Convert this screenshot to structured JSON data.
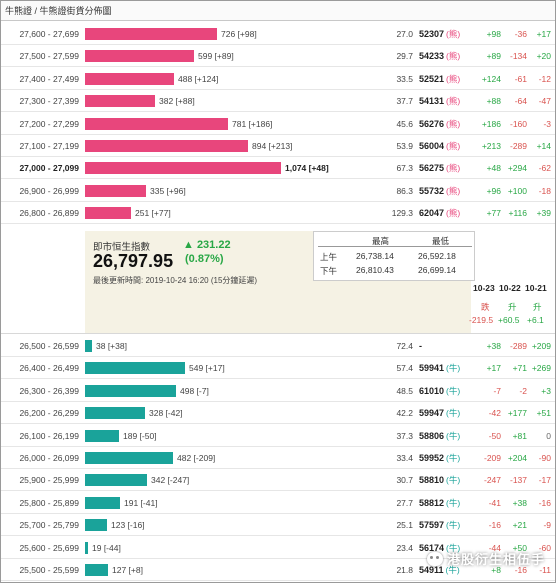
{
  "breadcrumb": "牛熊證 / 牛熊證街貨分佈圖",
  "colors": {
    "bull": "#e8467c",
    "bear": "#1aa39a",
    "up": "#28a745",
    "down": "#d9534f"
  },
  "upper_rows": [
    {
      "range": "27,600 - 27,699",
      "qty": "726 [+98]",
      "value": 726,
      "ratio": "27.0",
      "level": "52307",
      "tag": "(熊)",
      "c1": "+98",
      "c2": "-36",
      "c3": "+17"
    },
    {
      "range": "27,500 - 27,599",
      "qty": "599 [+89]",
      "value": 599,
      "ratio": "29.7",
      "level": "54233",
      "tag": "(熊)",
      "c1": "+89",
      "c2": "-134",
      "c3": "+20"
    },
    {
      "range": "27,400 - 27,499",
      "qty": "488 [+124]",
      "value": 488,
      "ratio": "33.5",
      "level": "52521",
      "tag": "(熊)",
      "c1": "+124",
      "c2": "-61",
      "c3": "-12"
    },
    {
      "range": "27,300 - 27,399",
      "qty": "382 [+88]",
      "value": 382,
      "ratio": "37.7",
      "level": "54131",
      "tag": "(熊)",
      "c1": "+88",
      "c2": "-64",
      "c3": "-47"
    },
    {
      "range": "27,200 - 27,299",
      "qty": "781 [+186]",
      "value": 781,
      "ratio": "45.6",
      "level": "56276",
      "tag": "(熊)",
      "c1": "+186",
      "c2": "-160",
      "c3": "-3"
    },
    {
      "range": "27,100 - 27,199",
      "qty": "894 [+213]",
      "value": 894,
      "ratio": "53.9",
      "level": "56004",
      "tag": "(熊)",
      "c1": "+213",
      "c2": "-289",
      "c3": "+14"
    },
    {
      "range": "27,000 - 27,099",
      "qty": "1,074 [+48]",
      "value": 1074,
      "ratio": "67.3",
      "level": "56275",
      "tag": "(熊)",
      "c1": "+48",
      "c2": "+294",
      "c3": "-62",
      "bold": true
    },
    {
      "range": "26,900 - 26,999",
      "qty": "335 [+96]",
      "value": 335,
      "ratio": "86.3",
      "level": "55732",
      "tag": "(熊)",
      "c1": "+96",
      "c2": "+100",
      "c3": "-18"
    },
    {
      "range": "26,800 - 26,899",
      "qty": "251 [+77]",
      "value": 251,
      "ratio": "129.3",
      "level": "62047",
      "tag": "(熊)",
      "c1": "+77",
      "c2": "+116",
      "c3": "+39"
    }
  ],
  "index": {
    "title": "即市恒生指數",
    "value": "26,797.95",
    "delta": "▲ 231.22",
    "pct": "(0.87%)",
    "updated": "最後更新時間: 2019-10-24 16:20 (15分鐘延遲)"
  },
  "hilo": {
    "h_high": "最高",
    "h_low": "最低",
    "am_label": "上午",
    "pm_label": "下午",
    "am_high": "26,738.14",
    "am_low": "26,592.18",
    "pm_high": "26,810.43",
    "pm_low": "26,699.14"
  },
  "dates": {
    "d1": "10-23",
    "d2": "10-22",
    "d3": "10-21",
    "dir1": "跌",
    "dir2": "升",
    "dir3": "升",
    "chg1": "-219.5",
    "chg2": "+60.5",
    "chg3": "+6.1"
  },
  "lower_rows": [
    {
      "range": "26,500 - 26,599",
      "qty": "38 [+38]",
      "value": 38,
      "ratio": "72.4",
      "level": "-",
      "tag": "",
      "c1": "+38",
      "c2": "-289",
      "c3": "+209"
    },
    {
      "range": "26,400 - 26,499",
      "qty": "549 [+17]",
      "value": 549,
      "ratio": "57.4",
      "level": "59941",
      "tag": "(牛)",
      "c1": "+17",
      "c2": "+71",
      "c3": "+269"
    },
    {
      "range": "26,300 - 26,399",
      "qty": "498 [-7]",
      "value": 498,
      "ratio": "48.5",
      "level": "61010",
      "tag": "(牛)",
      "c1": "-7",
      "c2": "-2",
      "c3": "+3"
    },
    {
      "range": "26,200 - 26,299",
      "qty": "328 [-42]",
      "value": 328,
      "ratio": "42.2",
      "level": "59947",
      "tag": "(牛)",
      "c1": "-42",
      "c2": "+177",
      "c3": "+51"
    },
    {
      "range": "26,100 - 26,199",
      "qty": "189 [-50]",
      "value": 189,
      "ratio": "37.3",
      "level": "58806",
      "tag": "(牛)",
      "c1": "-50",
      "c2": "+81",
      "c3": "0"
    },
    {
      "range": "26,000 - 26,099",
      "qty": "482 [-209]",
      "value": 482,
      "ratio": "33.4",
      "level": "59952",
      "tag": "(牛)",
      "c1": "-209",
      "c2": "+204",
      "c3": "-90"
    },
    {
      "range": "25,900 - 25,999",
      "qty": "342 [-247]",
      "value": 342,
      "ratio": "30.7",
      "level": "58810",
      "tag": "(牛)",
      "c1": "-247",
      "c2": "-137",
      "c3": "-17"
    },
    {
      "range": "25,800 - 25,899",
      "qty": "191 [-41]",
      "value": 191,
      "ratio": "27.7",
      "level": "58812",
      "tag": "(牛)",
      "c1": "-41",
      "c2": "+38",
      "c3": "-16"
    },
    {
      "range": "25,700 - 25,799",
      "qty": "123 [-16]",
      "value": 123,
      "ratio": "25.1",
      "level": "57597",
      "tag": "(牛)",
      "c1": "-16",
      "c2": "+21",
      "c3": "-9"
    },
    {
      "range": "25,600 - 25,699",
      "qty": "19 [-44]",
      "value": 19,
      "ratio": "23.4",
      "level": "56174",
      "tag": "(牛)",
      "c1": "-44",
      "c2": "+50",
      "c3": "-60"
    },
    {
      "range": "25,500 - 25,599",
      "qty": "127 [+8]",
      "value": 127,
      "ratio": "21.8",
      "level": "54911",
      "tag": "(牛)",
      "c1": "+8",
      "c2": "-16",
      "c3": "-11"
    }
  ],
  "watermark": "港股衍生相伍手",
  "max_value": 1074
}
